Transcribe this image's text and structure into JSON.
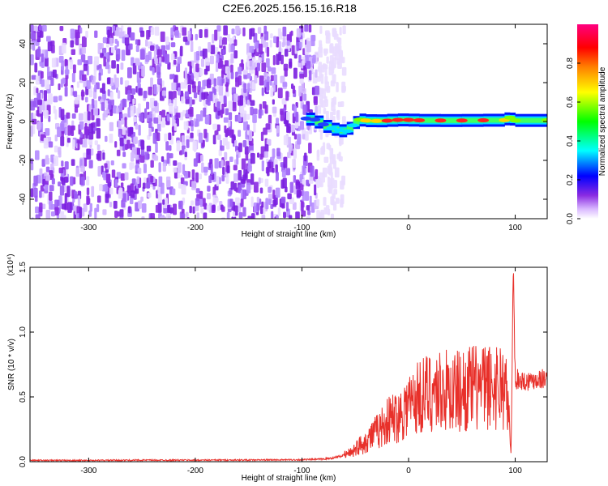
{
  "title": "C2E6.2025.156.15.16.R18",
  "chart_data": [
    {
      "type": "heatmap",
      "xlabel": "Height of straight line (km)",
      "ylabel": "Frequency (Hz)",
      "xlim": [
        -355,
        130
      ],
      "ylim": [
        -50,
        50
      ],
      "x_ticks": [
        -300,
        -200,
        -100,
        0,
        100
      ],
      "y_ticks": [
        -40,
        -20,
        0,
        20,
        40
      ],
      "noise_region_x": [
        -355,
        -72
      ],
      "signal_ridge": {
        "x": [
          -96,
          -88,
          -80,
          -72,
          -65,
          -58,
          -52,
          -46,
          -40,
          -30,
          -20,
          -10,
          0,
          10,
          30,
          50,
          70,
          90,
          95,
          100,
          130
        ],
        "y": [
          1.5,
          1.0,
          -1.5,
          -3.5,
          -4.5,
          -5.0,
          -2.0,
          1.0,
          0.5,
          0.3,
          0.4,
          0.8,
          0.8,
          0.6,
          0.5,
          0.5,
          0.6,
          0.7,
          2.0,
          0.5,
          0.6
        ],
        "amplitude": [
          0.25,
          0.3,
          0.35,
          0.45,
          0.55,
          0.5,
          0.45,
          0.6,
          0.75,
          0.85,
          0.9,
          0.95,
          0.95,
          0.92,
          0.9,
          0.9,
          0.88,
          0.85,
          0.7,
          0.65,
          0.6
        ]
      },
      "colorbar": {
        "label": "Normalized spectral amplitude",
        "ticks": [
          0.0,
          0.2,
          0.4,
          0.6,
          0.8
        ],
        "range": [
          0,
          1
        ],
        "colors": [
          "#ffffff",
          "#a066ff",
          "#0000ff",
          "#00ffff",
          "#00ff00",
          "#ffff00",
          "#ff8000",
          "#ff0000",
          "#ff00ff"
        ]
      },
      "grid": false
    },
    {
      "type": "line",
      "xlabel": "Height of straight line (km)",
      "ylabel": "SNR (10 * v/v)",
      "multiplier": "(x10⁴)",
      "xlim": [
        -355,
        130
      ],
      "ylim": [
        0,
        1.5
      ],
      "x_ticks": [
        -300,
        -200,
        -100,
        0,
        100
      ],
      "y_ticks": [
        0.0,
        0.5,
        1.0,
        1.5
      ],
      "y_tick_labels": [
        "0.0",
        "0.5",
        "1.0",
        "1.5"
      ],
      "series": [
        {
          "color": "#e8302a",
          "x": [
            -355,
            -300,
            -250,
            -200,
            -150,
            -100,
            -80,
            -70,
            -60,
            -55,
            -50,
            -45,
            -40,
            -35,
            -30,
            -25,
            -20,
            -15,
            -10,
            -5,
            0,
            5,
            10,
            15,
            20,
            25,
            30,
            40,
            50,
            60,
            70,
            80,
            85,
            90,
            93,
            95,
            96,
            97,
            98,
            100,
            105,
            110,
            120,
            130
          ],
          "y": [
            0.01,
            0.01,
            0.012,
            0.012,
            0.013,
            0.015,
            0.02,
            0.03,
            0.05,
            0.07,
            0.1,
            0.13,
            0.16,
            0.2,
            0.23,
            0.27,
            0.31,
            0.34,
            0.35,
            0.4,
            0.45,
            0.47,
            0.5,
            0.52,
            0.54,
            0.55,
            0.55,
            0.54,
            0.55,
            0.57,
            0.57,
            0.58,
            0.6,
            0.58,
            0.45,
            0.2,
            0.05,
            0.6,
            1.55,
            0.64,
            0.63,
            0.62,
            0.64,
            0.64
          ]
        }
      ],
      "grid": false
    }
  ]
}
